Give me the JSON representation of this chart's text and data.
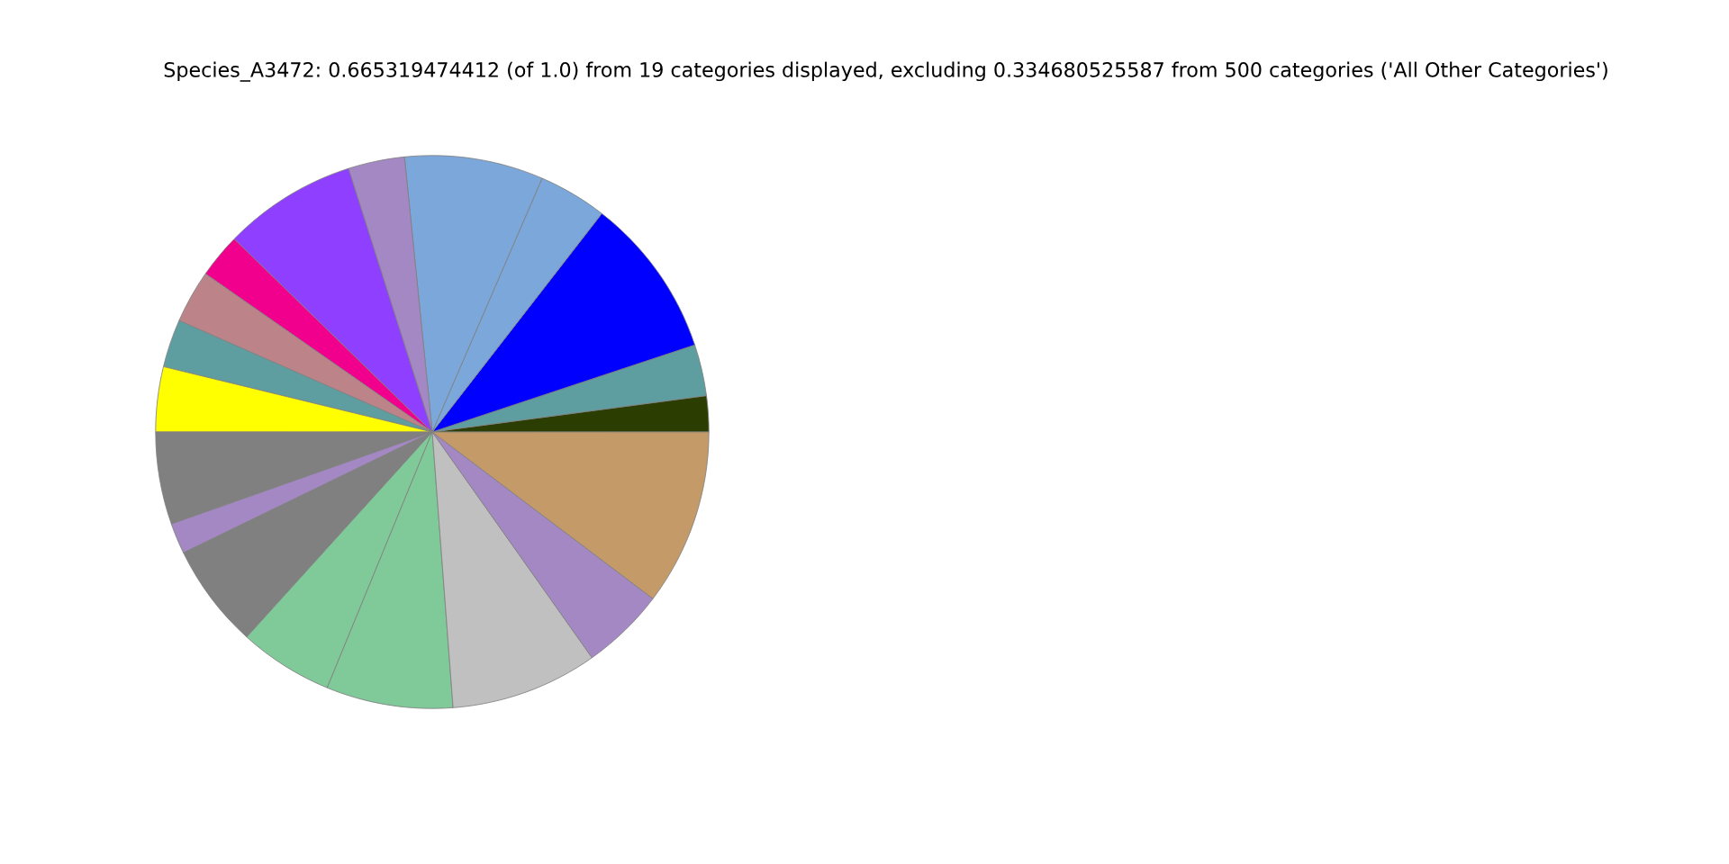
{
  "chart_data": {
    "type": "pie",
    "title": "Species_A3472: 0.665319474412 (of 1.0) from 19 categories displayed, excluding 0.334680525587 from 500 categories ('All Other Categories')",
    "categories": [
      null,
      null,
      null,
      null,
      null,
      null,
      null,
      null,
      null,
      null,
      null,
      null,
      null,
      null,
      null,
      null,
      null,
      null,
      null
    ],
    "values": [
      2.1,
      3.0,
      9.4,
      4.0,
      8.1,
      3.3,
      7.8,
      2.6,
      3.1,
      2.8,
      3.8,
      5.4,
      1.8,
      6.1,
      5.5,
      7.4,
      8.6,
      4.9,
      10.3
    ],
    "colors": [
      "#2b3d00",
      "#5f9ea0",
      "#0000ff",
      "#7ba7da",
      "#7ba7da",
      "#a388c4",
      "#8f3fff",
      "#f0008c",
      "#bc8489",
      "#5f9ea0",
      "#ffff00",
      "#808080",
      "#a388c4",
      "#808080",
      "#80c999",
      "#80c999",
      "#c0c0c0",
      "#a388c4",
      "#c49a68"
    ],
    "legend": false
  }
}
